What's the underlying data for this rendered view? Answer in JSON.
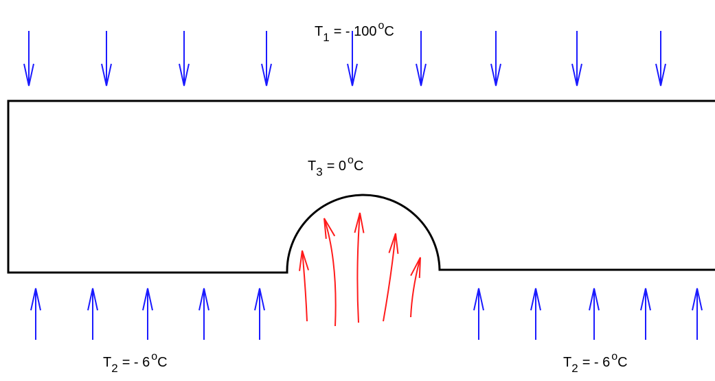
{
  "labels": [
    {
      "symbol": "T",
      "subscript": "1",
      "value": "= - 100",
      "degree": "o",
      "unit": "C"
    },
    {
      "symbol": "T",
      "subscript": "3",
      "value": "= 0",
      "degree": "o",
      "unit": "C"
    },
    {
      "symbol": "T",
      "subscript": "2",
      "value": "= - 6",
      "degree": "o",
      "unit": "C"
    },
    {
      "symbol": "T",
      "subscript": "2",
      "value": "= - 6",
      "degree": "o",
      "unit": "C"
    }
  ]
}
